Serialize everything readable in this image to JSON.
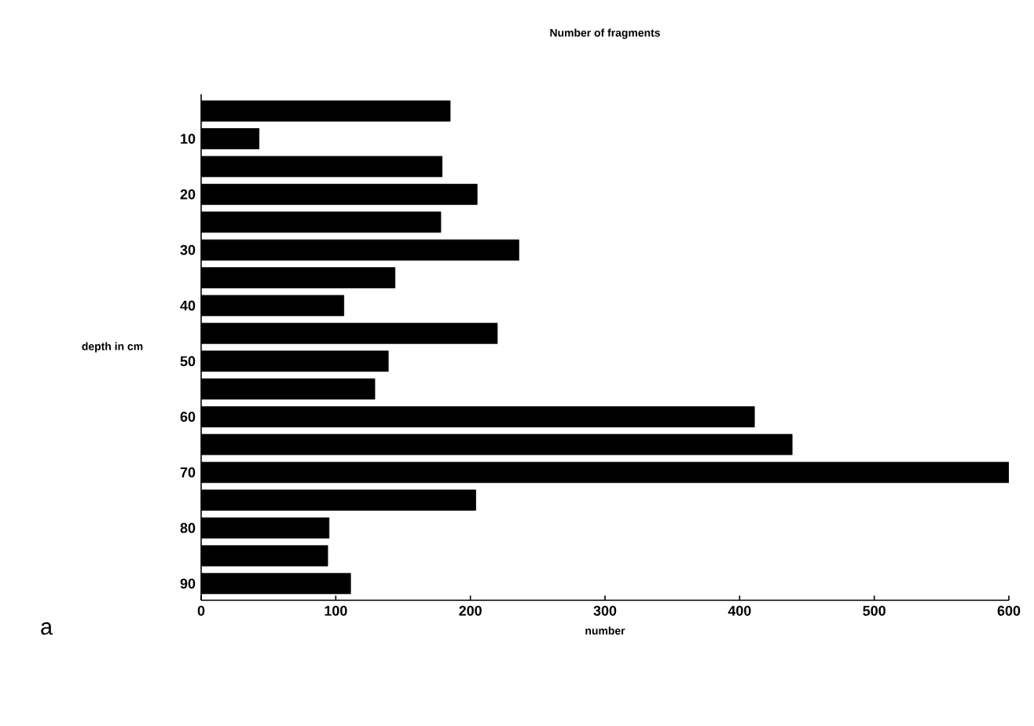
{
  "chart_data": {
    "type": "bar",
    "orientation": "horizontal",
    "title": "Number of fragments",
    "xlabel": "number",
    "ylabel": "depth in cm",
    "annotations": [
      "a"
    ],
    "categories": [
      null,
      "10",
      null,
      "20",
      null,
      "30",
      null,
      "40",
      null,
      "50",
      null,
      "60",
      null,
      "70",
      null,
      "80",
      null,
      "90"
    ],
    "values": [
      185,
      43,
      179,
      205,
      178,
      236,
      144,
      106,
      220,
      139,
      129,
      411,
      439,
      600,
      204,
      95,
      94,
      111
    ],
    "color": "#000000",
    "xlim": [
      0,
      600
    ],
    "xticks": [
      0,
      100,
      200,
      300,
      400,
      500,
      600
    ],
    "grid": false
  }
}
